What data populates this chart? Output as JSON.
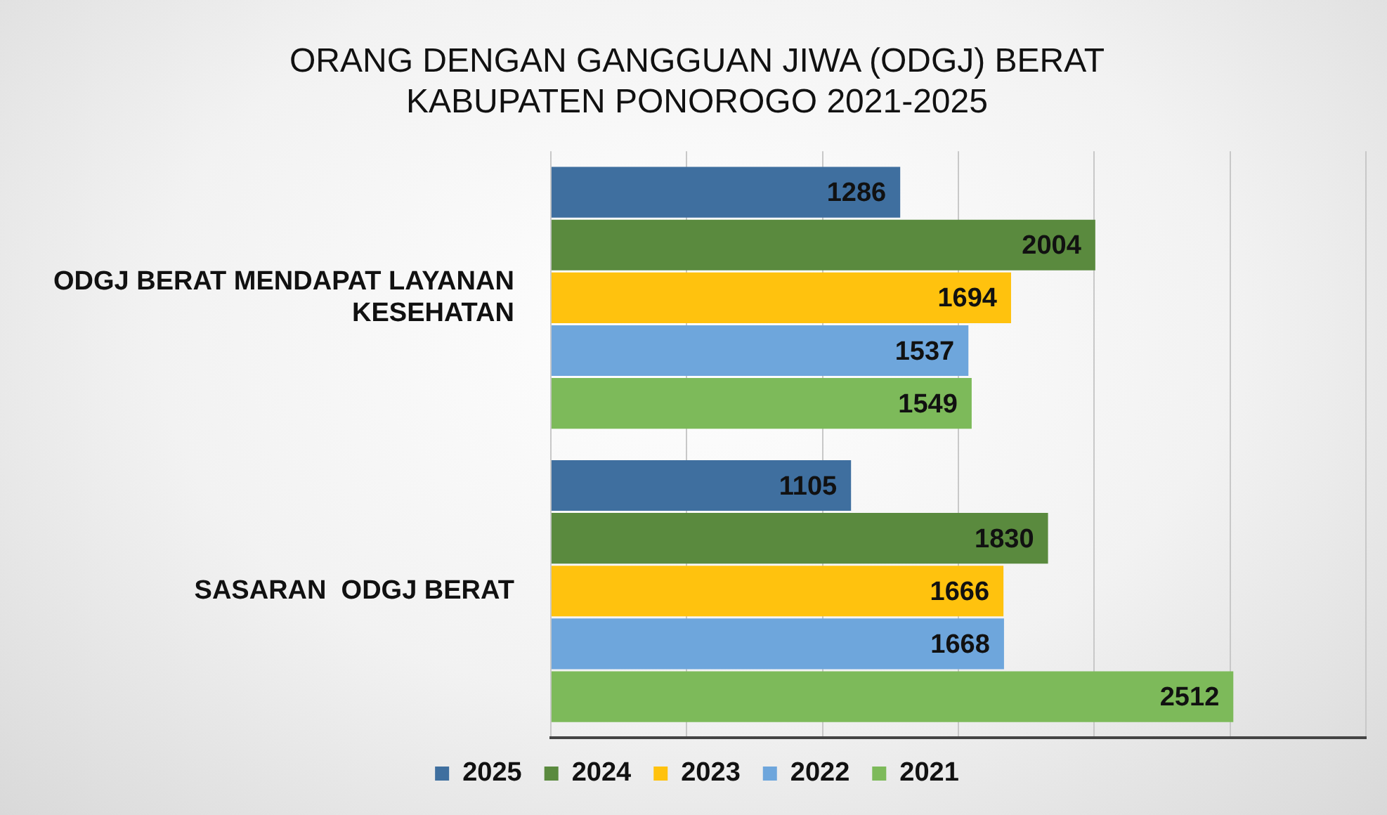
{
  "chart_data": {
    "type": "bar",
    "orientation": "horizontal",
    "title": "ORANG DENGAN GANGGUAN JIWA (ODGJ) BERAT KABUPATEN PONOROGO 2021-2025",
    "categories": [
      "ODGJ BERAT MENDAPAT LAYANAN KESEHATAN",
      "SASARAN  ODGJ BERAT"
    ],
    "series": [
      {
        "name": "2025",
        "color": "#3f6f9f",
        "values": [
          1286,
          1105
        ]
      },
      {
        "name": "2024",
        "color": "#5a8a3e",
        "values": [
          2004,
          1830
        ]
      },
      {
        "name": "2023",
        "color": "#ffc20e",
        "values": [
          1694,
          1666
        ]
      },
      {
        "name": "2022",
        "color": "#6ea6dc",
        "values": [
          1537,
          1668
        ]
      },
      {
        "name": "2021",
        "color": "#7dba5a",
        "values": [
          1549,
          2512
        ]
      }
    ],
    "xlim": [
      0,
      3000
    ],
    "xticks": [
      {
        "value": 0,
        "label": null
      },
      {
        "value": 500,
        "label": null
      },
      {
        "value": 1000,
        "label": null
      },
      {
        "value": 1500,
        "label": null
      },
      {
        "value": 2000,
        "label": null
      },
      {
        "value": 2500,
        "label": null
      },
      {
        "value": 3000,
        "label": null
      }
    ],
    "tick_labels": "y",
    "grid": "x",
    "legend": "bottom",
    "data_labels": true
  }
}
